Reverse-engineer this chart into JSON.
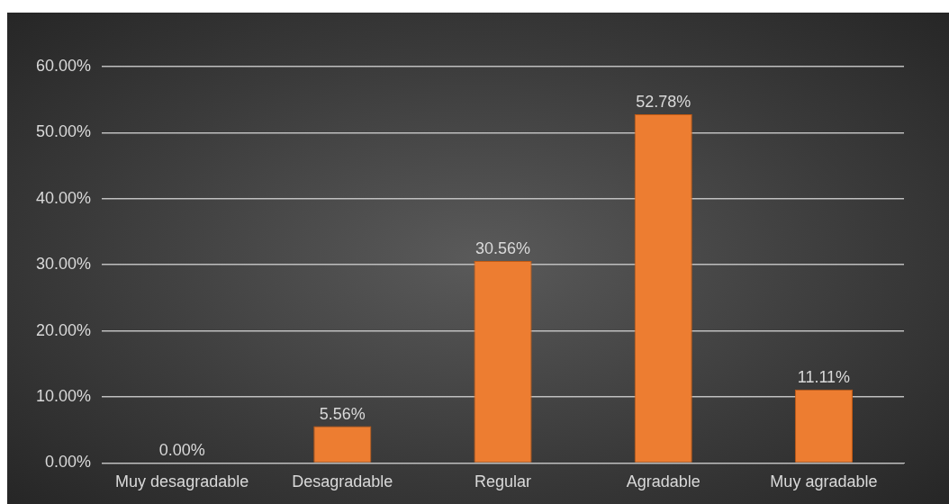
{
  "chart_data": {
    "type": "bar",
    "categories": [
      "Muy desagradable",
      "Desagradable",
      "Regular",
      "Agradable",
      "Muy agradable"
    ],
    "values": [
      0,
      5.56,
      30.56,
      52.78,
      11.11
    ],
    "value_labels": [
      "0.00%",
      "5.56%",
      "30.56%",
      "52.78%",
      "11.11%"
    ],
    "color": "#ed7d31",
    "ylim": [
      0,
      60
    ],
    "yticks": [
      {
        "value": 0,
        "label": "0.00%"
      },
      {
        "value": 10,
        "label": "10.00%"
      },
      {
        "value": 20,
        "label": "20.00%"
      },
      {
        "value": 30,
        "label": "30.00%"
      },
      {
        "value": 40,
        "label": "40.00%"
      },
      {
        "value": 50,
        "label": "50.00%"
      },
      {
        "value": 60,
        "label": "60.00%"
      }
    ],
    "grid": "y",
    "legend": false
  }
}
